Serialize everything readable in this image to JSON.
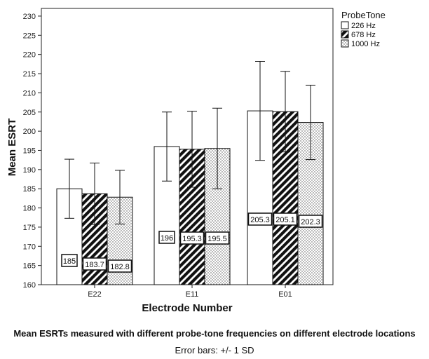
{
  "chart_data": {
    "type": "bar",
    "xlabel": "Electrode Number",
    "ylabel": "Mean ESRT",
    "categories": [
      "E22",
      "E11",
      "E01"
    ],
    "ylim": [
      160,
      232
    ],
    "yticks": [
      160,
      165,
      170,
      175,
      180,
      185,
      190,
      195,
      200,
      205,
      210,
      215,
      220,
      225,
      230
    ],
    "legend": {
      "title": "ProbeTone",
      "placement": "right"
    },
    "series": [
      {
        "name": "226 Hz",
        "pattern": "white",
        "values": [
          185,
          196,
          205.3
        ],
        "labels": [
          "185",
          "196",
          "205.3"
        ],
        "sd": [
          7.7,
          9.0,
          12.9
        ]
      },
      {
        "name": "678 Hz",
        "pattern": "diagonal-hatch",
        "values": [
          183.7,
          195.3,
          205.1
        ],
        "labels": [
          "183.7",
          "195.3",
          "205.1"
        ],
        "sd": [
          8.0,
          9.9,
          10.5
        ]
      },
      {
        "name": "1000 Hz",
        "pattern": "dotted",
        "values": [
          182.8,
          195.5,
          202.3
        ],
        "labels": [
          "182.8",
          "195.5",
          "202.3"
        ],
        "sd": [
          7.0,
          10.5,
          9.7
        ]
      }
    ],
    "grid": false
  },
  "caption": {
    "main": "Mean ESRTs measured with different probe-tone frequencies on different electrode locations",
    "error_bars": "Error bars: +/- 1 SD"
  }
}
